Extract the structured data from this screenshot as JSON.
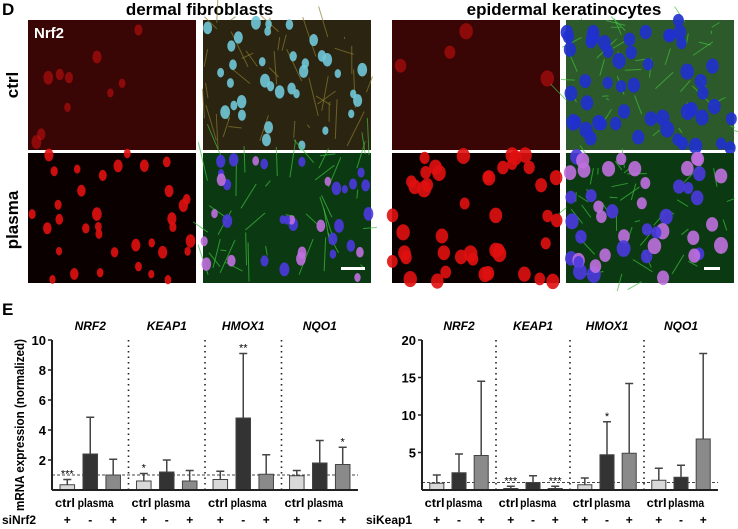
{
  "panel_d": {
    "letter": "D",
    "columns": [
      "dermal fibroblasts",
      "epidermal keratinocytes"
    ],
    "rows": [
      "ctrl",
      "plasma"
    ],
    "stain_label": "Nrf2"
  },
  "panel_e": {
    "letter": "E"
  },
  "chart_data": [
    {
      "type": "bar",
      "ylabel": "mRNA expression (normalized)",
      "ylim": [
        0,
        10
      ],
      "yticks": [
        2,
        4,
        6,
        8,
        10
      ],
      "groups": [
        "NRF2",
        "KEAP1",
        "HMOX1",
        "NQO1"
      ],
      "bar_labels": [
        "ctrl",
        "plasma",
        ""
      ],
      "treatment_label": "siNrf2",
      "treatment_signs": [
        "+",
        "-",
        "+"
      ],
      "reference_line": 1,
      "colors": [
        "#d9d9d9",
        "#333333",
        "#8a8a8a"
      ],
      "values": [
        [
          0.35,
          2.4,
          1.0
        ],
        [
          0.6,
          1.2,
          0.6
        ],
        [
          0.7,
          4.8,
          1.05
        ],
        [
          0.95,
          1.8,
          1.7
        ]
      ],
      "error_upper": [
        [
          0.7,
          4.85,
          2.05
        ],
        [
          1.1,
          2.0,
          1.3
        ],
        [
          1.25,
          9.1,
          2.35
        ],
        [
          1.3,
          3.3,
          2.85
        ]
      ],
      "significance": [
        [
          "***",
          "",
          ""
        ],
        [
          "*",
          "",
          ""
        ],
        [
          "",
          "**",
          ""
        ],
        [
          "",
          "",
          "*"
        ]
      ]
    },
    {
      "type": "bar",
      "ylabel": "",
      "ylim": [
        0,
        20
      ],
      "yticks": [
        5,
        10,
        15,
        20
      ],
      "groups": [
        "NRF2",
        "KEAP1",
        "HMOX1",
        "NQO1"
      ],
      "bar_labels": [
        "ctrl",
        "plasma",
        ""
      ],
      "treatment_label": "siKeap1",
      "treatment_signs": [
        "+",
        "-",
        "+"
      ],
      "reference_line": 1,
      "colors": [
        "#d9d9d9",
        "#333333",
        "#8a8a8a"
      ],
      "values": [
        [
          0.9,
          2.3,
          4.6
        ],
        [
          0.2,
          1.0,
          0.2
        ],
        [
          0.7,
          4.7,
          4.9
        ],
        [
          1.3,
          1.7,
          6.8
        ]
      ],
      "error_upper": [
        [
          2.0,
          4.8,
          14.5
        ],
        [
          0.5,
          1.9,
          0.5
        ],
        [
          1.6,
          9.1,
          14.2
        ],
        [
          2.9,
          3.3,
          18.2
        ]
      ],
      "significance": [
        [
          "",
          "",
          ""
        ],
        [
          "***",
          "",
          "***"
        ],
        [
          "",
          "*",
          ""
        ],
        [
          "",
          "",
          ""
        ]
      ]
    }
  ]
}
